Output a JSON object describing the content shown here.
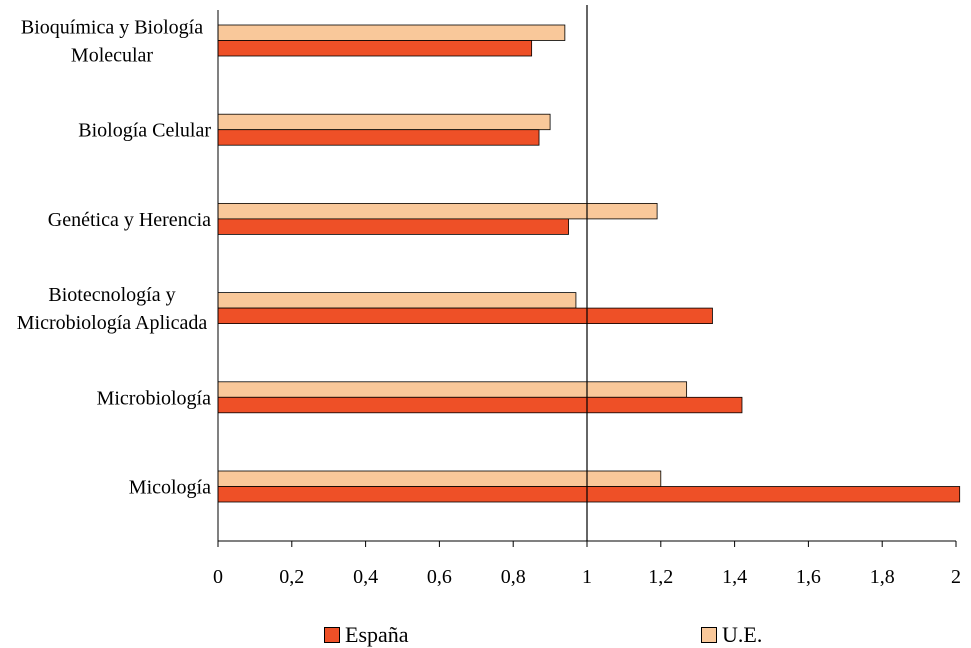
{
  "chart_data": {
    "type": "bar",
    "orientation": "horizontal",
    "categories": [
      [
        "Bioquímica y Biología",
        "Molecular"
      ],
      [
        "Biología Celular"
      ],
      [
        "Genética y Herencia"
      ],
      [
        "Biotecnología y",
        "Microbiología Aplicada"
      ],
      [
        "Microbiología"
      ],
      [
        "Micología"
      ]
    ],
    "series": [
      {
        "name": "España",
        "color": "#ee5027",
        "values": [
          0.85,
          0.87,
          0.95,
          1.34,
          1.42,
          2.01
        ]
      },
      {
        "name": "U.E.",
        "color": "#f9c89a",
        "values": [
          0.94,
          0.9,
          1.19,
          0.97,
          1.27,
          1.2
        ]
      }
    ],
    "xlim": [
      0,
      2
    ],
    "xticks": [
      0,
      0.2,
      0.4,
      0.6,
      0.8,
      1,
      1.2,
      1.4,
      1.6,
      1.8,
      2
    ],
    "xtick_labels": [
      "0",
      "0,2",
      "0,4",
      "0,6",
      "0,8",
      "1",
      "1,2",
      "1,4",
      "1,6",
      "1,8",
      "2"
    ],
    "reference_line": 1,
    "legend_position": "bottom",
    "grid": false
  },
  "legend": {
    "espana_label": "España",
    "ue_label": "U.E."
  }
}
